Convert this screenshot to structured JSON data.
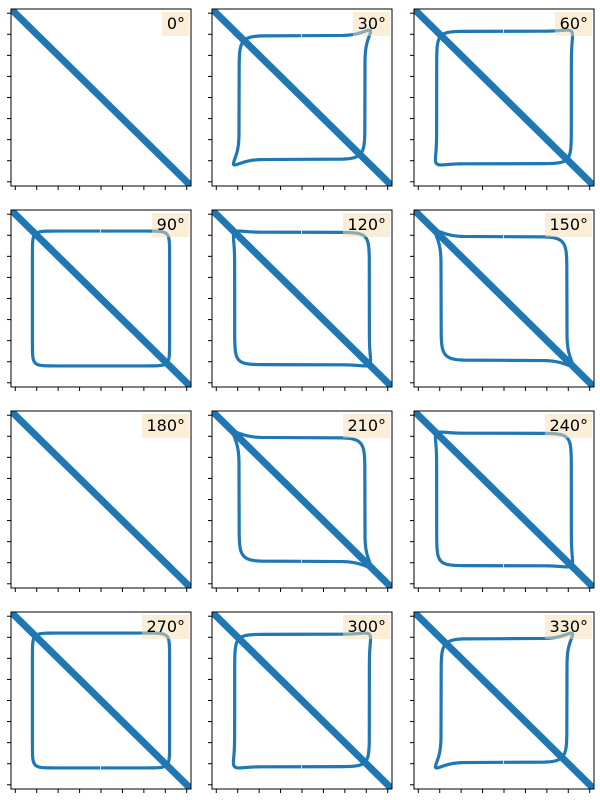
{
  "chart_data": {
    "type": "line",
    "grid": false,
    "line_color": "#1f77b4",
    "label_box_color": "#f5deb3",
    "label_box_alpha": 0.5,
    "axes_range": {
      "x": [
        -1.05,
        1.05
      ],
      "y": [
        -1.05,
        1.05
      ]
    },
    "tick_labels_visible": false,
    "loop_squareness": 8,
    "loop_amplitude": 0.8,
    "panels": [
      {
        "label": "0°",
        "phase_deg": 0
      },
      {
        "label": "30°",
        "phase_deg": 30
      },
      {
        "label": "60°",
        "phase_deg": 60
      },
      {
        "label": "90°",
        "phase_deg": 90
      },
      {
        "label": "120°",
        "phase_deg": 120
      },
      {
        "label": "150°",
        "phase_deg": 150
      },
      {
        "label": "180°",
        "phase_deg": 180
      },
      {
        "label": "210°",
        "phase_deg": 210
      },
      {
        "label": "240°",
        "phase_deg": 240
      },
      {
        "label": "270°",
        "phase_deg": 270
      },
      {
        "label": "300°",
        "phase_deg": 300
      },
      {
        "label": "330°",
        "phase_deg": 330
      }
    ]
  }
}
